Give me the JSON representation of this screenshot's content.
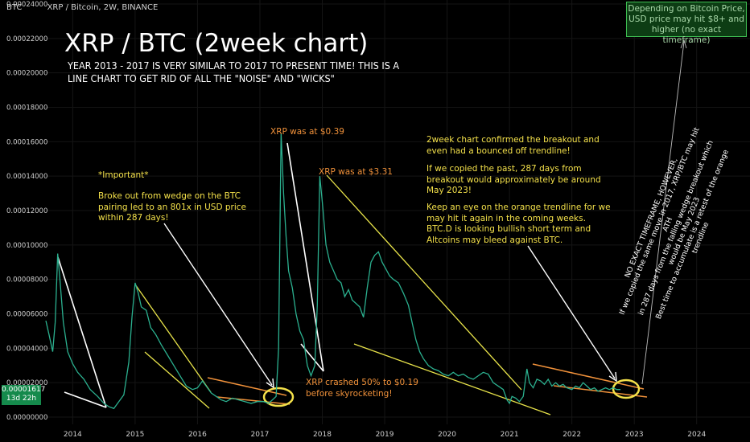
{
  "header": {
    "currency": "BTC",
    "symbol": "XRP / Bitcoin, 2W, BINANCE"
  },
  "price_tag": {
    "value": "0.00001617",
    "countdown": "13d 22h"
  },
  "chart_data": {
    "type": "line",
    "title": "XRP / BTC (2week chart)",
    "subtitle": "YEAR 2013 - 2017 IS VERY SIMILAR TO 2017 TO PRESENT TIME! THIS IS A LINE CHART TO GET RID OF ALL THE \"NOISE\" AND \"WICKS\"",
    "yticks": [
      "0.00024000",
      "0.00022000",
      "0.00020000",
      "0.00018000",
      "0.00016000",
      "0.00014000",
      "0.00012000",
      "0.00010000",
      "0.00008000",
      "0.00006000",
      "0.00004000",
      "0.00002000",
      "0.00000000"
    ],
    "xticks": [
      "2014",
      "2015",
      "2016",
      "2017",
      "2018",
      "2019",
      "2020",
      "2021",
      "2022",
      "2023",
      "2024"
    ],
    "ylim": [
      0,
      0.00024
    ],
    "xlim": [
      2013.57,
      2024.7
    ],
    "series": [
      {
        "color": "#2bb08f",
        "points": [
          [
            2013.57,
            5.6e-05
          ],
          [
            2013.62,
            4.8e-05
          ],
          [
            2013.68,
            3.8e-05
          ],
          [
            2013.72,
            5.5e-05
          ],
          [
            2013.76,
            9.5e-05
          ],
          [
            2013.8,
            7.8e-05
          ],
          [
            2013.85,
            5.5e-05
          ],
          [
            2013.92,
            3.8e-05
          ],
          [
            2014.0,
            3.1e-05
          ],
          [
            2014.08,
            2.6e-05
          ],
          [
            2014.18,
            2.2e-05
          ],
          [
            2014.28,
            1.6e-05
          ],
          [
            2014.4,
            1.2e-05
          ],
          [
            2014.5,
            8e-06
          ],
          [
            2014.58,
            6e-06
          ],
          [
            2014.66,
            5e-06
          ],
          [
            2014.74,
            9e-06
          ],
          [
            2014.82,
            1.3e-05
          ],
          [
            2014.9,
            3.2e-05
          ],
          [
            2014.95,
            5.8e-05
          ],
          [
            2015.0,
            7.8e-05
          ],
          [
            2015.05,
            7.2e-05
          ],
          [
            2015.1,
            6.4e-05
          ],
          [
            2015.18,
            6.2e-05
          ],
          [
            2015.25,
            5.2e-05
          ],
          [
            2015.33,
            4.8e-05
          ],
          [
            2015.42,
            4.2e-05
          ],
          [
            2015.52,
            3.6e-05
          ],
          [
            2015.62,
            3e-05
          ],
          [
            2015.72,
            2.4e-05
          ],
          [
            2015.82,
            1.8e-05
          ],
          [
            2015.92,
            1.6e-05
          ],
          [
            2016.0,
            1.7e-05
          ],
          [
            2016.08,
            2.1e-05
          ],
          [
            2016.16,
            1.7e-05
          ],
          [
            2016.22,
            1.4e-05
          ],
          [
            2016.3,
            1.2e-05
          ],
          [
            2016.38,
            1e-05
          ],
          [
            2016.46,
            9e-06
          ],
          [
            2016.56,
            1.1e-05
          ],
          [
            2016.66,
            1e-05
          ],
          [
            2016.76,
            9e-06
          ],
          [
            2016.86,
            8e-06
          ],
          [
            2016.96,
            9e-06
          ],
          [
            2017.06,
            9e-06
          ],
          [
            2017.14,
            8e-06
          ],
          [
            2017.2,
            1e-05
          ],
          [
            2017.26,
            1.2e-05
          ],
          [
            2017.3,
            4e-05
          ],
          [
            2017.34,
            0.000165
          ],
          [
            2017.38,
            0.00013
          ],
          [
            2017.42,
            0.000105
          ],
          [
            2017.46,
            8.5e-05
          ],
          [
            2017.52,
            7.5e-05
          ],
          [
            2017.58,
            6e-05
          ],
          [
            2017.64,
            5e-05
          ],
          [
            2017.7,
            4.5e-05
          ],
          [
            2017.76,
            3e-05
          ],
          [
            2017.82,
            2.4e-05
          ],
          [
            2017.88,
            3e-05
          ],
          [
            2017.92,
            6.5e-05
          ],
          [
            2017.96,
            0.00014
          ],
          [
            2018.0,
            0.000125
          ],
          [
            2018.06,
            0.0001
          ],
          [
            2018.12,
            9e-05
          ],
          [
            2018.18,
            8.5e-05
          ],
          [
            2018.24,
            8e-05
          ],
          [
            2018.3,
            7.8e-05
          ],
          [
            2018.36,
            7e-05
          ],
          [
            2018.42,
            7.4e-05
          ],
          [
            2018.48,
            6.8e-05
          ],
          [
            2018.54,
            6.6e-05
          ],
          [
            2018.6,
            6.4e-05
          ],
          [
            2018.66,
            5.8e-05
          ],
          [
            2018.72,
            7.5e-05
          ],
          [
            2018.78,
            9e-05
          ],
          [
            2018.84,
            9.4e-05
          ],
          [
            2018.9,
            9.6e-05
          ],
          [
            2018.96,
            9e-05
          ],
          [
            2019.02,
            8.6e-05
          ],
          [
            2019.08,
            8.2e-05
          ],
          [
            2019.14,
            8e-05
          ],
          [
            2019.22,
            7.8e-05
          ],
          [
            2019.3,
            7.2e-05
          ],
          [
            2019.38,
            6.5e-05
          ],
          [
            2019.44,
            5.5e-05
          ],
          [
            2019.5,
            4.5e-05
          ],
          [
            2019.56,
            3.8e-05
          ],
          [
            2019.62,
            3.4e-05
          ],
          [
            2019.7,
            3e-05
          ],
          [
            2019.78,
            2.8e-05
          ],
          [
            2019.86,
            2.7e-05
          ],
          [
            2019.94,
            2.5e-05
          ],
          [
            2020.02,
            2.4e-05
          ],
          [
            2020.1,
            2.6e-05
          ],
          [
            2020.18,
            2.4e-05
          ],
          [
            2020.26,
            2.5e-05
          ],
          [
            2020.34,
            2.3e-05
          ],
          [
            2020.42,
            2.2e-05
          ],
          [
            2020.5,
            2.4e-05
          ],
          [
            2020.58,
            2.6e-05
          ],
          [
            2020.66,
            2.5e-05
          ],
          [
            2020.74,
            2e-05
          ],
          [
            2020.82,
            1.8e-05
          ],
          [
            2020.9,
            1.6e-05
          ],
          [
            2020.96,
            1e-05
          ],
          [
            2021.0,
            8e-06
          ],
          [
            2021.04,
            1.2e-05
          ],
          [
            2021.1,
            1.1e-05
          ],
          [
            2021.16,
            9e-06
          ],
          [
            2021.22,
            1.2e-05
          ],
          [
            2021.28,
            2.8e-05
          ],
          [
            2021.32,
            2e-05
          ],
          [
            2021.38,
            1.7e-05
          ],
          [
            2021.44,
            2.2e-05
          ],
          [
            2021.5,
            2.1e-05
          ],
          [
            2021.56,
            1.9e-05
          ],
          [
            2021.62,
            2.2e-05
          ],
          [
            2021.68,
            1.8e-05
          ],
          [
            2021.74,
            2e-05
          ],
          [
            2021.8,
            1.8e-05
          ],
          [
            2021.86,
            1.9e-05
          ],
          [
            2021.92,
            1.7e-05
          ],
          [
            2022.0,
            1.6e-05
          ],
          [
            2022.06,
            1.8e-05
          ],
          [
            2022.12,
            1.7e-05
          ],
          [
            2022.18,
            2e-05
          ],
          [
            2022.24,
            1.8e-05
          ],
          [
            2022.3,
            1.6e-05
          ],
          [
            2022.36,
            1.7e-05
          ],
          [
            2022.42,
            1.5e-05
          ],
          [
            2022.48,
            1.6e-05
          ],
          [
            2022.54,
            1.7e-05
          ],
          [
            2022.6,
            1.6e-05
          ],
          [
            2022.66,
            1.7e-05
          ],
          [
            2022.72,
            1.6e-05
          ],
          [
            2022.78,
            1.6e-05
          ]
        ]
      }
    ],
    "annotations": {
      "important": "*Important*",
      "broke_out": "Broke out from wedge on the BTC pairing led to an 801x in USD price within 287 days!",
      "xrp_039": "XRP was at $0.39",
      "xrp_331": "XRP was at $3.31",
      "crashed_1": "XRP crashed 50% to $0.19",
      "crashed_2": "before skyrocketing!",
      "confirmed": "2week chart confirmed the breakout and even had a bounced off trendline!",
      "copied": "If we copied the past, 287 days from breakout would approximately be around May 2023!",
      "keep_eye": "Keep an eye on the orange trendline for we may hit it again in the coming weeks. BTC.D is looking bullish short term and Altcoins may bleed against BTC.",
      "box": "Depending on Bitcoin Price, USD price may hit $8+ and higher (no exact timeframe)",
      "rotated": [
        "NO EXACT TIMEFRAME, HOWEVER,",
        "If we copied the same move in 2017, XRP/BTC may hit ATH",
        "in 287 days from the falling wedge breakout which would be May 2023",
        "Best time to accumulate is a retest of the orange trendline"
      ]
    }
  }
}
